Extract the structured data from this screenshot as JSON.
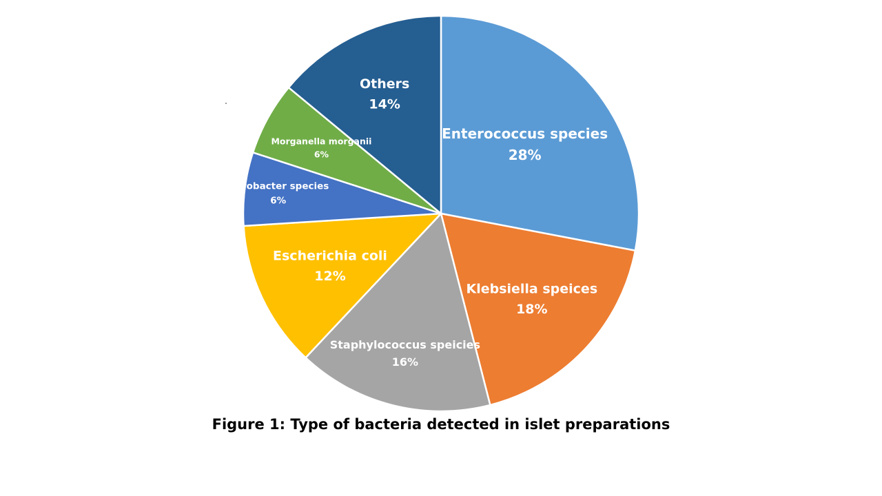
{
  "caption": "Figure 1: Type of bacteria detected in islet preparations",
  "chart_data": {
    "type": "pie",
    "title": "",
    "unit": "%",
    "slices": [
      {
        "label": "Enterococcus species",
        "value": 28,
        "value_label": "28%",
        "color": "#5b9bd5"
      },
      {
        "label": "Klebsiella speices",
        "value": 18,
        "value_label": "18%",
        "color": "#ed7d31"
      },
      {
        "label": "Staphylococcus speicies",
        "value": 16,
        "value_label": "16%",
        "color": "#a5a5a5"
      },
      {
        "label": "Escherichia coli",
        "value": 12,
        "value_label": "12%",
        "color": "#ffc000"
      },
      {
        "label": "Citrobacter species",
        "value": 6,
        "value_label": "6%",
        "color": "#4472c4"
      },
      {
        "label": "Morganella morganii",
        "value": 6,
        "value_label": "6%",
        "color": "#70ad47"
      },
      {
        "label": "Others",
        "value": 14,
        "value_label": "14%",
        "color": "#255e91"
      }
    ],
    "start": "12 o'clock",
    "direction": "clockwise",
    "legend": "none",
    "labels": "inside slices"
  }
}
